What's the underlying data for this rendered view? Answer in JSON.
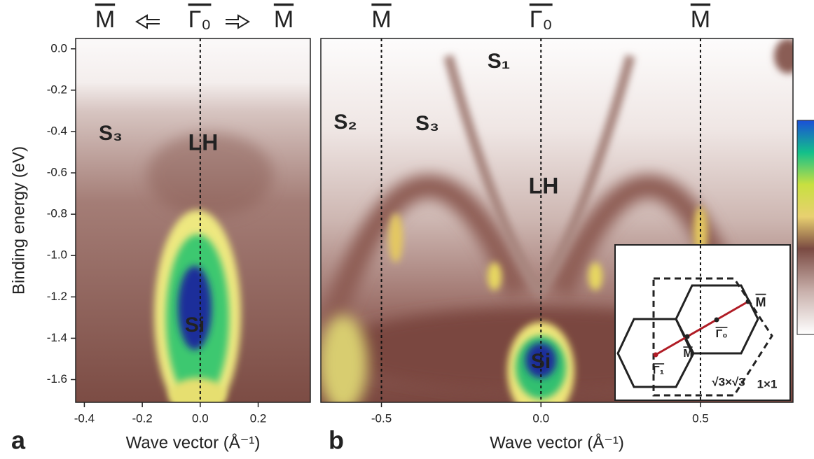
{
  "chart_data": [
    {
      "type": "heatmap",
      "panel_label": "a",
      "xlabel": "Wave vector (Å⁻¹)",
      "ylabel": "Binding energy (eV)",
      "xlim": [
        -0.43,
        0.38
      ],
      "xticks": [
        -0.4,
        -0.2,
        {
          "value": 0,
          "label": "0.0"
        },
        0.2
      ],
      "ylim": [
        -1.71,
        0.05
      ],
      "yticks": [
        {
          "value": 0,
          "label": "0.0"
        },
        -0.2,
        -0.4,
        -0.6,
        -0.8,
        {
          "value": -1,
          "label": "-1.0"
        },
        -1.2,
        -1.4,
        -1.6
      ],
      "vlines": [
        0
      ],
      "top_labels": [
        "M",
        "Γ₀",
        "M"
      ],
      "annotations": [
        "S₃",
        "LH",
        "Si"
      ]
    },
    {
      "type": "heatmap",
      "panel_label": "b",
      "xlabel": "Wave vector (Å⁻¹)",
      "xlim": [
        -0.69,
        0.79
      ],
      "xticks": [
        -0.5,
        {
          "value": 0,
          "label": "0.0"
        },
        0.5
      ],
      "ylim": [
        -1.71,
        0.05
      ],
      "vlines": [
        -0.5,
        0,
        0.5
      ],
      "top_labels": [
        "M",
        "Γ₀",
        "M"
      ],
      "annotations": [
        "S₁",
        "S₂",
        "S₃",
        "LH",
        "Si"
      ],
      "inset_labels": [
        "M",
        "Γ₀",
        "Γ₁",
        "M",
        "√3×√3",
        "1×1"
      ]
    }
  ]
}
